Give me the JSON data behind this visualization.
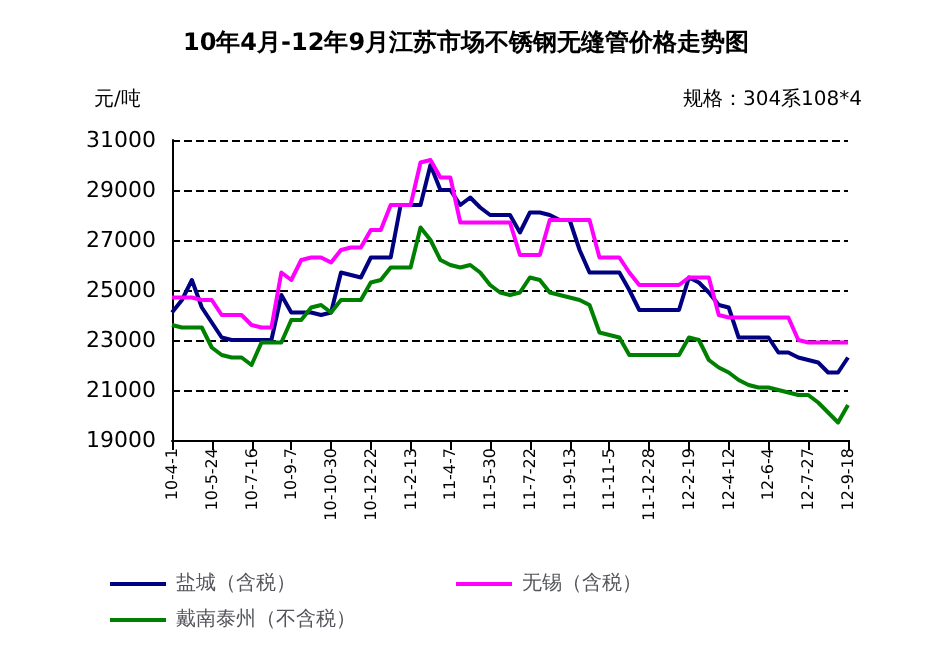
{
  "chart_data": {
    "type": "line",
    "title": "10年4月-12年9月江苏市场不锈钢无缝管价格走势图",
    "ylabel": "元/吨",
    "annotations": [
      "规格：304系108*4"
    ],
    "categories": [
      "10-4-1",
      null,
      null,
      null,
      "10-5-24",
      null,
      null,
      null,
      "10-7-16",
      null,
      null,
      null,
      "10-9-7",
      null,
      null,
      null,
      "10-10-30",
      null,
      null,
      null,
      "10-12-22",
      null,
      null,
      null,
      "11-2-13",
      null,
      null,
      null,
      "11-4-7",
      null,
      null,
      null,
      "11-5-30",
      null,
      null,
      null,
      "11-7-22",
      null,
      null,
      null,
      "11-9-13",
      null,
      null,
      null,
      "11-11-5",
      null,
      null,
      null,
      "11-12-28",
      null,
      null,
      null,
      "12-2-19",
      null,
      null,
      null,
      "12-4-12",
      null,
      null,
      null,
      "12-6-4",
      null,
      null,
      null,
      "12-7-27",
      null,
      null,
      null,
      "12-9-18"
    ],
    "series": [
      {
        "name": "盐城（含税）",
        "color": "#000080",
        "values": [
          24100,
          24600,
          25400,
          24300,
          23700,
          23100,
          23000,
          23000,
          23000,
          23000,
          23000,
          24800,
          24100,
          24100,
          24100,
          24000,
          24100,
          25700,
          25600,
          25500,
          26300,
          26300,
          26300,
          28400,
          28400,
          28400,
          30000,
          29000,
          29000,
          28400,
          28700,
          28300,
          28000,
          28000,
          28000,
          27300,
          28100,
          28100,
          28000,
          27800,
          27800,
          26600,
          25700,
          25700,
          25700,
          25700,
          25000,
          24200,
          24200,
          24200,
          24200,
          24200,
          25500,
          25300,
          24900,
          24400,
          24300,
          23100,
          23100,
          23100,
          23100,
          22500,
          22500,
          22300,
          22200,
          22100,
          21700,
          21700,
          22300
        ]
      },
      {
        "name": "无锡（含税）",
        "color": "#ff00ff",
        "values": [
          24700,
          24700,
          24700,
          24600,
          24600,
          24000,
          24000,
          24000,
          23600,
          23500,
          23500,
          25700,
          25400,
          26200,
          26300,
          26300,
          26100,
          26600,
          26700,
          26700,
          27400,
          27400,
          28400,
          28400,
          28400,
          30100,
          30200,
          29500,
          29500,
          27700,
          27700,
          27700,
          27700,
          27700,
          27700,
          26400,
          26400,
          26400,
          27800,
          27800,
          27800,
          27800,
          27800,
          26300,
          26300,
          26300,
          25700,
          25200,
          25200,
          25200,
          25200,
          25200,
          25500,
          25500,
          25500,
          24000,
          23900,
          23900,
          23900,
          23900,
          23900,
          23900,
          23900,
          23000,
          22900,
          22900,
          22900,
          22900,
          22900
        ]
      },
      {
        "name": "戴南泰州（不含税）",
        "color": "#008000",
        "values": [
          23600,
          23500,
          23500,
          23500,
          22700,
          22400,
          22300,
          22300,
          22000,
          22900,
          22900,
          22900,
          23800,
          23800,
          24300,
          24400,
          24100,
          24600,
          24600,
          24600,
          25300,
          25400,
          25900,
          25900,
          25900,
          27500,
          27000,
          26200,
          26000,
          25900,
          26000,
          25700,
          25200,
          24900,
          24800,
          24900,
          25500,
          25400,
          24900,
          24800,
          24700,
          24600,
          24400,
          23300,
          23200,
          23100,
          22400,
          22400,
          22400,
          22400,
          22400,
          22400,
          23100,
          23000,
          22200,
          21900,
          21700,
          21400,
          21200,
          21100,
          21100,
          21000,
          20900,
          20800,
          20800,
          20500,
          20100,
          19700,
          20400
        ]
      }
    ],
    "ylim": [
      19000,
      31000
    ],
    "yticks": [
      19000,
      21000,
      23000,
      25000,
      27000,
      29000,
      31000
    ],
    "grid": "y",
    "legend": "bottom",
    "marker": "none",
    "line_style": "solid"
  }
}
